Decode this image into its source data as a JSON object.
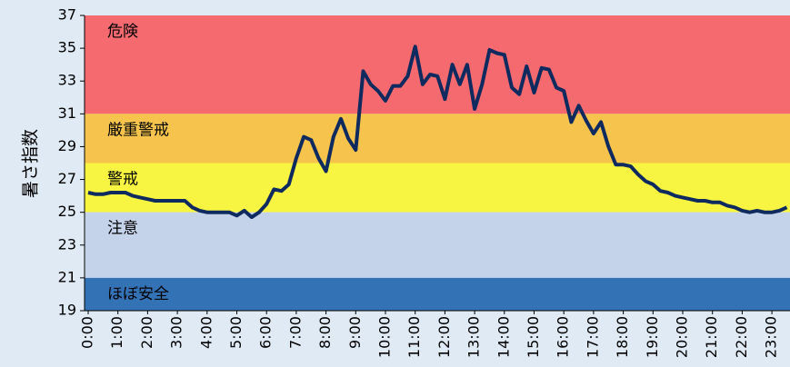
{
  "chart_data": {
    "type": "line",
    "ylabel": "暑さ指数",
    "categories": [
      "0:00",
      null,
      null,
      null,
      "1:00",
      null,
      null,
      null,
      "2:00",
      null,
      null,
      null,
      "3:00",
      null,
      null,
      null,
      "4:00",
      null,
      null,
      null,
      "5:00",
      null,
      null,
      null,
      "6:00",
      null,
      null,
      null,
      "7:00",
      null,
      null,
      null,
      "8:00",
      null,
      null,
      null,
      "9:00",
      null,
      null,
      null,
      "10:00",
      null,
      null,
      null,
      "11:00",
      null,
      null,
      null,
      "12:00",
      null,
      null,
      null,
      "13:00",
      null,
      null,
      null,
      "14:00",
      null,
      null,
      null,
      "15:00",
      null,
      null,
      null,
      "16:00",
      null,
      null,
      null,
      "17:00",
      null,
      null,
      null,
      "18:00",
      null,
      null,
      null,
      "19:00",
      null,
      null,
      null,
      "20:00",
      null,
      null,
      null,
      "21:00",
      null,
      null,
      null,
      "22:00",
      null,
      null,
      null,
      "23:00",
      null,
      null
    ],
    "values": [
      26.2,
      26.1,
      26.1,
      26.2,
      26.2,
      26.2,
      26.0,
      25.9,
      25.8,
      25.7,
      25.7,
      25.7,
      25.7,
      25.7,
      25.3,
      25.1,
      25.0,
      25.0,
      25.0,
      25.0,
      24.8,
      25.1,
      24.7,
      25.0,
      25.5,
      26.4,
      26.3,
      26.7,
      28.3,
      29.6,
      29.4,
      28.3,
      27.5,
      29.6,
      30.7,
      29.5,
      28.8,
      33.6,
      32.8,
      32.4,
      31.8,
      32.7,
      32.7,
      33.3,
      35.1,
      32.8,
      33.4,
      33.3,
      31.9,
      34.0,
      32.8,
      34.0,
      31.3,
      32.8,
      34.9,
      34.7,
      34.6,
      32.6,
      32.2,
      33.9,
      32.3,
      33.8,
      33.7,
      32.6,
      32.4,
      30.5,
      31.5,
      30.6,
      29.8,
      30.5,
      29.0,
      27.9,
      27.9,
      27.8,
      27.3,
      26.9,
      26.7,
      26.3,
      26.2,
      26.0,
      25.9,
      25.8,
      25.7,
      25.7,
      25.6,
      25.6,
      25.4,
      25.3,
      25.1,
      25.0,
      25.1,
      25.0,
      25.0,
      25.1,
      25.3
    ],
    "color": "#0f2a5e",
    "ylim": [
      19,
      37
    ],
    "yticks": [
      19,
      21,
      23,
      25,
      27,
      29,
      31,
      33,
      35,
      37
    ],
    "bands": [
      {
        "label": "危険",
        "from": 31,
        "to": 37,
        "color": "#f46a6f"
      },
      {
        "label": "厳重警戒",
        "from": 28,
        "to": 31,
        "color": "#f6c44d"
      },
      {
        "label": "警戒",
        "from": 25,
        "to": 28,
        "color": "#f7f542"
      },
      {
        "label": "注意",
        "from": 21,
        "to": 25,
        "color": "#c4d3ea"
      },
      {
        "label": "ほぼ安全",
        "from": 19,
        "to": 21,
        "color": "#3472b6"
      }
    ]
  }
}
